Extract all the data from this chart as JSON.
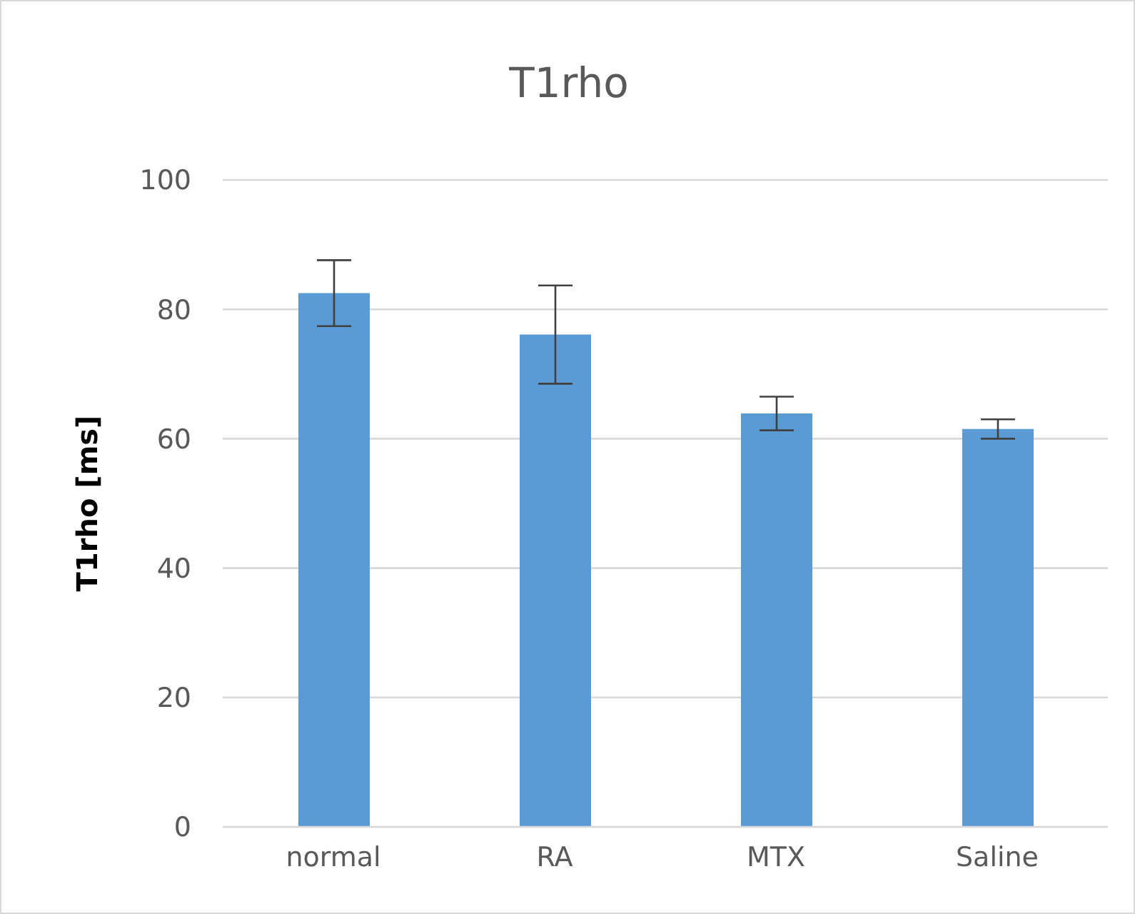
{
  "chart_data": {
    "type": "bar",
    "title": "T1rho",
    "ylabel": "T1rho [ms]",
    "categories": [
      "normal",
      "RA",
      "MTX",
      "Saline"
    ],
    "values": [
      82.5,
      76.1,
      63.9,
      61.5
    ],
    "errors": [
      5.1,
      7.6,
      2.6,
      1.5
    ],
    "color": "#5b9bd5",
    "ylim": [
      0,
      100
    ],
    "yticks": [
      0,
      20,
      40,
      60,
      80,
      100
    ],
    "grid": "y",
    "legend": false
  }
}
